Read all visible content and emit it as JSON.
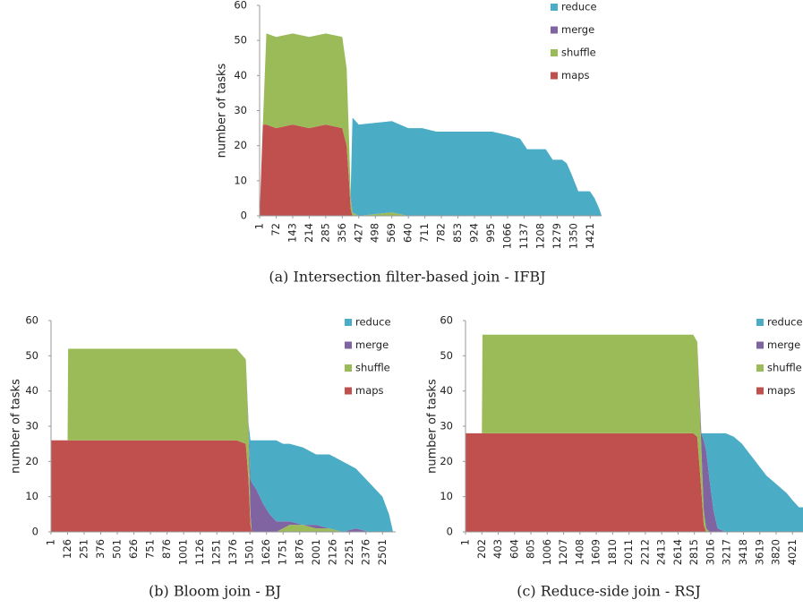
{
  "chart_data": [
    {
      "type": "area",
      "caption": "(a) Intersection filter-based join - IFBJ",
      "y_label": "number of tasks",
      "stacked": true,
      "x": [
        1,
        15,
        30,
        72,
        143,
        214,
        285,
        356,
        375,
        385,
        392,
        400,
        427,
        569,
        640,
        700,
        760,
        1000,
        1066,
        1120,
        1150,
        1230,
        1260,
        1300,
        1320,
        1340,
        1370,
        1420,
        1440,
        1460,
        1470
      ],
      "series": [
        {
          "name": "maps",
          "color": "#c0504d",
          "values": [
            0,
            26,
            26,
            25,
            26,
            25,
            26,
            25,
            20,
            10,
            2,
            0,
            0,
            0,
            0,
            0,
            0,
            0,
            0,
            0,
            0,
            0,
            0,
            0,
            0,
            0,
            0,
            0,
            0,
            0,
            0
          ]
        },
        {
          "name": "shuffle",
          "color": "#9bbb59",
          "values": [
            0,
            0,
            26,
            26,
            26,
            26,
            26,
            26,
            22,
            12,
            3,
            1,
            0,
            1,
            0,
            0,
            0,
            0,
            0,
            0,
            0,
            0,
            0,
            0,
            0,
            0,
            0,
            0,
            0,
            0,
            0
          ]
        },
        {
          "name": "merge",
          "color": "#8064a2",
          "values": [
            0,
            0,
            0,
            0,
            0,
            0,
            0,
            0,
            0,
            0,
            1,
            0,
            0,
            0,
            0,
            0,
            0,
            0,
            0,
            0,
            0,
            0,
            0,
            0,
            0,
            0,
            0,
            0,
            0,
            0,
            0
          ]
        },
        {
          "name": "reduce",
          "color": "#4bacc6",
          "values": [
            0,
            0,
            0,
            0,
            0,
            0,
            0,
            0,
            0,
            0,
            0,
            27,
            26,
            26,
            25,
            25,
            24,
            24,
            23,
            22,
            19,
            19,
            16,
            16,
            15,
            12,
            7,
            7,
            5,
            2,
            0
          ]
        }
      ],
      "xlim": [
        1,
        1470
      ],
      "xticks": [
        1,
        72,
        143,
        214,
        285,
        356,
        427,
        498,
        569,
        640,
        711,
        782,
        853,
        924,
        995,
        1066,
        1137,
        1208,
        1279,
        1350,
        1421
      ],
      "ylim": [
        0,
        60
      ],
      "yticks": [
        0,
        10,
        20,
        30,
        40,
        50,
        60
      ],
      "grid": false,
      "legend": "right"
    },
    {
      "type": "area",
      "caption": "(b) Bloom join - BJ",
      "y_label": "number of tasks",
      "stacked": true,
      "x": [
        1,
        10,
        126,
        130,
        500,
        1000,
        1400,
        1470,
        1490,
        1505,
        1515,
        1550,
        1600,
        1650,
        1700,
        1750,
        1800,
        1900,
        2000,
        2100,
        2200,
        2300,
        2400,
        2450,
        2500,
        2550,
        2580
      ],
      "series": [
        {
          "name": "maps",
          "color": "#c0504d",
          "values": [
            26,
            26,
            26,
            26,
            26,
            26,
            26,
            25,
            15,
            2,
            0,
            0,
            0,
            0,
            0,
            0,
            0,
            0,
            0,
            0,
            0,
            0,
            0,
            0,
            0,
            0,
            0
          ]
        },
        {
          "name": "shuffle",
          "color": "#9bbb59",
          "values": [
            0,
            0,
            0,
            26,
            26,
            26,
            26,
            24,
            14,
            3,
            0,
            0,
            0,
            0,
            0,
            1,
            2,
            2,
            1,
            1,
            0,
            0,
            0,
            0,
            0,
            0,
            0
          ]
        },
        {
          "name": "merge",
          "color": "#8064a2",
          "values": [
            0,
            0,
            0,
            0,
            0,
            0,
            0,
            0,
            2,
            10,
            14,
            12,
            8,
            5,
            3,
            2,
            1,
            0,
            1,
            0,
            0,
            1,
            0,
            0,
            0,
            0,
            0
          ]
        },
        {
          "name": "reduce",
          "color": "#4bacc6",
          "values": [
            0,
            0,
            0,
            0,
            0,
            0,
            0,
            0,
            0,
            11,
            12,
            14,
            18,
            21,
            23,
            22,
            22,
            22,
            20,
            21,
            20,
            17,
            14,
            12,
            10,
            5,
            0
          ]
        }
      ],
      "xlim": [
        1,
        2600
      ],
      "xticks": [
        1,
        126,
        251,
        376,
        501,
        626,
        751,
        876,
        1001,
        1126,
        1251,
        1376,
        1501,
        1626,
        1751,
        1876,
        2001,
        2126,
        2251,
        2376,
        2501
      ],
      "ylim": [
        0,
        60
      ],
      "yticks": [
        0,
        10,
        20,
        30,
        40,
        50,
        60
      ],
      "grid": false,
      "legend": "right"
    },
    {
      "type": "area",
      "caption": "(c) Reduce-side join - RSJ",
      "y_label": "number of tasks",
      "stacked": true,
      "x": [
        1,
        20,
        202,
        210,
        1000,
        2000,
        2800,
        2850,
        2900,
        2930,
        2960,
        3000,
        3050,
        3100,
        3200,
        3300,
        3400,
        3500,
        3600,
        3700,
        3800,
        3950,
        4021,
        4100,
        4150
      ],
      "series": [
        {
          "name": "maps",
          "color": "#c0504d",
          "values": [
            28,
            28,
            28,
            28,
            28,
            28,
            28,
            27,
            12,
            2,
            0,
            0,
            0,
            0,
            0,
            0,
            0,
            0,
            0,
            0,
            0,
            0,
            0,
            0,
            0
          ]
        },
        {
          "name": "shuffle",
          "color": "#9bbb59",
          "values": [
            0,
            0,
            0,
            28,
            28,
            28,
            28,
            27,
            12,
            4,
            1,
            0,
            0,
            0,
            0,
            0,
            0,
            0,
            0,
            0,
            0,
            0,
            0,
            0,
            0
          ]
        },
        {
          "name": "merge",
          "color": "#8064a2",
          "values": [
            0,
            0,
            0,
            0,
            0,
            0,
            0,
            0,
            4,
            20,
            22,
            15,
            6,
            1,
            0,
            0,
            0,
            0,
            0,
            0,
            0,
            0,
            0,
            0,
            0
          ]
        },
        {
          "name": "reduce",
          "color": "#4bacc6",
          "values": [
            0,
            0,
            0,
            0,
            0,
            0,
            0,
            0,
            0,
            2,
            5,
            13,
            22,
            27,
            28,
            27,
            25,
            22,
            19,
            16,
            14,
            11,
            9,
            7,
            7
          ]
        }
      ],
      "xlim": [
        1,
        4150
      ],
      "xticks": [
        1,
        202,
        403,
        604,
        805,
        1006,
        1207,
        1408,
        1609,
        1810,
        2011,
        2212,
        2413,
        2614,
        2815,
        3016,
        3217,
        3418,
        3619,
        3820,
        4021
      ],
      "ylim": [
        0,
        60
      ],
      "yticks": [
        0,
        10,
        20,
        30,
        40,
        50,
        60
      ],
      "grid": false,
      "legend": "right"
    }
  ]
}
